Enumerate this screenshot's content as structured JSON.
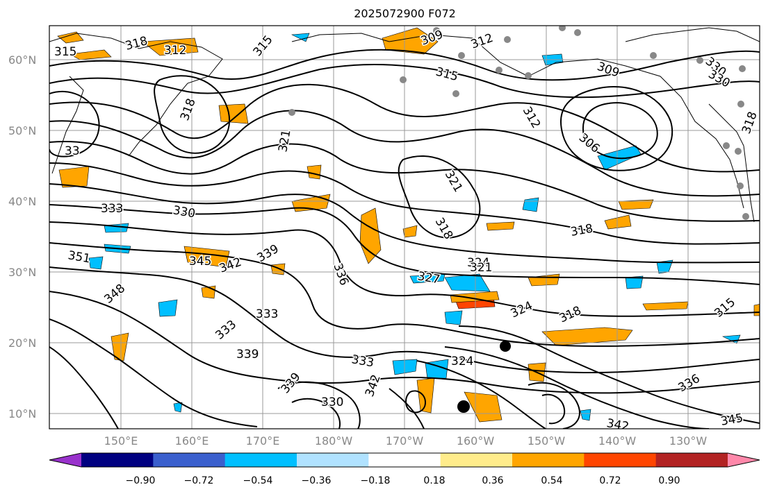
{
  "title": "2025072900 F072",
  "lat_labels": [
    "60°N",
    "50°N",
    "40°N",
    "30°N",
    "20°N",
    "10°N"
  ],
  "lon_labels": [
    "150°E",
    "160°E",
    "170°E",
    "180°W",
    "170°W",
    "160°W",
    "150°W",
    "140°W",
    "130°W"
  ],
  "colorbar": {
    "ticks": [
      "−0.90",
      "−0.72",
      "−0.54",
      "−0.36",
      "−0.18",
      "0.18",
      "0.36",
      "0.54",
      "0.72",
      "0.90"
    ],
    "colors": [
      "#9932cc",
      "#000080",
      "#3a5fcd",
      "#00bfff",
      "#b0e2ff",
      "#ffffff",
      "#ffec8b",
      "#ffa500",
      "#ff4500",
      "#b22222",
      "#ff88aa"
    ]
  },
  "contour_labels": [
    "315",
    "318",
    "312",
    "315",
    "309",
    "312",
    "315",
    "309",
    "330",
    "318",
    "321",
    "312",
    "306",
    "321",
    "318",
    "333",
    "330",
    "345",
    "342",
    "339",
    "351",
    "348",
    "336",
    "327",
    "324",
    "321",
    "318",
    "324",
    "318",
    "315",
    "333",
    "333",
    "339",
    "333",
    "324",
    "342",
    "339",
    "330",
    "336",
    "342",
    "345",
    "330",
    "318",
    "33"
  ]
}
